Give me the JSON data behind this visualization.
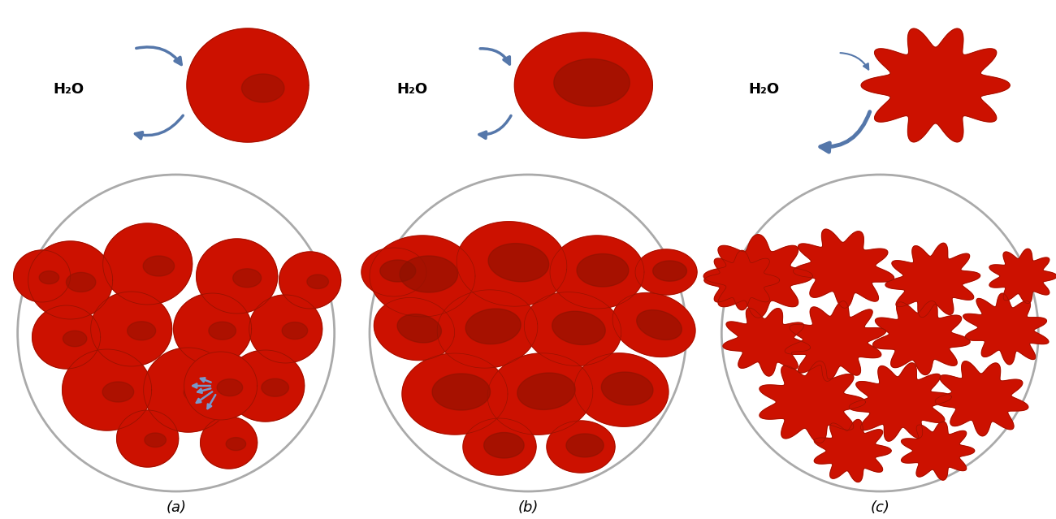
{
  "background_color": "#ffffff",
  "cell_red": "#cc1100",
  "cell_red_dark": "#991100",
  "cell_shadow": "#881100",
  "arrow_color": "#5577aa",
  "circle_edge": "#aaaaaa",
  "label_a": "(a)",
  "label_b": "(b)",
  "label_c": "(c)",
  "h2o_label": "H₂O",
  "label_fontsize": 13,
  "h2o_fontsize": 13,
  "fig_width": 13.0,
  "fig_height": 6.39,
  "dpi": 100
}
